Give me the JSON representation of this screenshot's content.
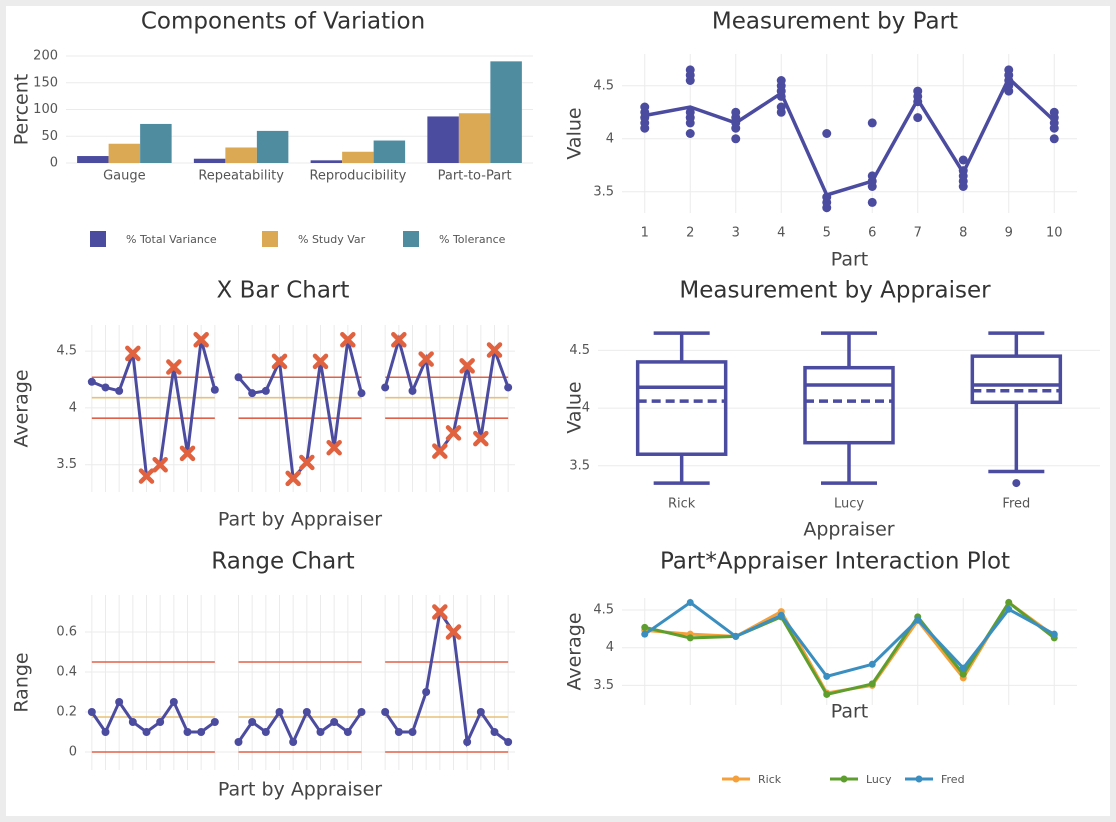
{
  "chart_data": [
    {
      "type": "bar",
      "title": "Components of Variation",
      "y_label": "Percent",
      "categories": [
        "Gauge",
        "Repeatability",
        "Reproducibility",
        "Part-to-Part"
      ],
      "series": [
        {
          "name": "% Total Variance",
          "color": "#4b4ba0",
          "values": [
            13,
            8,
            5,
            87
          ]
        },
        {
          "name": "% Study Var",
          "color": "#dba954",
          "values": [
            36,
            29,
            21,
            93
          ]
        },
        {
          "name": "% Tolerance",
          "color": "#4f8ca0",
          "values": [
            73,
            60,
            42,
            190
          ]
        }
      ],
      "ylim": [
        0,
        200
      ],
      "yticks": [
        0,
        50,
        100,
        150,
        200
      ],
      "grid": true
    },
    {
      "type": "scatter",
      "title": "Measurement by Part",
      "x_label": "Part",
      "y_label": "Value",
      "color": "#4b4ba0",
      "points": {
        "x": [
          1,
          1,
          1,
          1,
          1,
          2,
          2,
          2,
          2,
          2,
          2,
          2,
          3,
          3,
          3,
          3,
          3,
          4,
          4,
          4,
          4,
          4,
          4,
          5,
          5,
          5,
          5,
          6,
          6,
          6,
          6,
          6,
          7,
          7,
          7,
          7,
          8,
          8,
          8,
          8,
          8,
          9,
          9,
          9,
          9,
          9,
          10,
          10,
          10,
          10,
          10
        ],
        "values": [
          4.1,
          4.15,
          4.2,
          4.25,
          4.3,
          4.05,
          4.15,
          4.2,
          4.25,
          4.55,
          4.6,
          4.65,
          4.0,
          4.1,
          4.15,
          4.2,
          4.25,
          4.25,
          4.3,
          4.4,
          4.45,
          4.5,
          4.55,
          3.35,
          3.4,
          3.45,
          4.05,
          3.4,
          3.55,
          3.6,
          3.65,
          4.15,
          4.2,
          4.35,
          4.4,
          4.45,
          3.55,
          3.6,
          3.65,
          3.7,
          3.8,
          4.45,
          4.5,
          4.55,
          4.6,
          4.65,
          4.0,
          4.1,
          4.15,
          4.2,
          4.25
        ]
      },
      "means": {
        "x": [
          1,
          2,
          3,
          4,
          5,
          6,
          7,
          8,
          9,
          10
        ],
        "values": [
          4.22,
          4.3,
          4.15,
          4.43,
          3.47,
          3.6,
          4.37,
          3.68,
          4.57,
          4.17
        ]
      },
      "xlim": [
        0.5,
        10.5
      ],
      "xticks": [
        1,
        2,
        3,
        4,
        5,
        6,
        7,
        8,
        9,
        10
      ],
      "ylim": [
        3.3,
        4.8
      ],
      "yticks": [
        3.5,
        4,
        4.5
      ],
      "grid": true
    },
    {
      "type": "control",
      "title": "X Bar Chart",
      "x_label": "Part by Appraiser",
      "y_label": "Average",
      "color": "#4b4ba0",
      "flag_color": "#e0623f",
      "series": [
        {
          "values": [
            4.23,
            4.18,
            4.15,
            4.48,
            3.4,
            3.5,
            4.36,
            3.6,
            4.6,
            4.16
          ]
        },
        {
          "values": [
            4.27,
            4.13,
            4.15,
            4.41,
            3.38,
            3.52,
            4.41,
            3.65,
            4.6,
            4.13
          ]
        },
        {
          "values": [
            4.18,
            4.6,
            4.15,
            4.43,
            3.62,
            3.78,
            4.37,
            3.73,
            4.51,
            4.18
          ]
        }
      ],
      "ucl": 4.27,
      "center": 4.09,
      "lcl": 3.91,
      "limit_color": "#e0604a",
      "center_color": "#e8c07a",
      "ylim": [
        3.26,
        4.73
      ],
      "yticks": [
        3.5,
        4,
        4.5
      ],
      "grid": true
    },
    {
      "type": "box",
      "title": "Measurement by Appraiser",
      "x_label": "Appraiser",
      "y_label": "Value",
      "color": "#4b4ba0",
      "categories": [
        "Rick",
        "Lucy",
        "Fred"
      ],
      "boxes": [
        {
          "min": 3.35,
          "q1": 3.6,
          "median": 4.18,
          "mean": 4.06,
          "q3": 4.4,
          "max": 4.65,
          "outliers": []
        },
        {
          "min": 3.35,
          "q1": 3.7,
          "median": 4.2,
          "mean": 4.06,
          "q3": 4.35,
          "max": 4.65,
          "outliers": []
        },
        {
          "min": 3.45,
          "q1": 4.05,
          "median": 4.2,
          "mean": 4.15,
          "q3": 4.45,
          "max": 4.65,
          "outliers": [
            3.35
          ]
        }
      ],
      "ylim": [
        3.29,
        4.72
      ],
      "yticks": [
        3.5,
        4,
        4.5
      ],
      "grid": true
    },
    {
      "type": "control",
      "title": "Range Chart",
      "x_label": "Part by Appraiser",
      "y_label": "Range",
      "color": "#4b4ba0",
      "flag_color": "#e0623f",
      "series": [
        {
          "values": [
            0.2,
            0.1,
            0.25,
            0.15,
            0.1,
            0.15,
            0.25,
            0.1,
            0.1,
            0.15
          ]
        },
        {
          "values": [
            0.05,
            0.15,
            0.1,
            0.2,
            0.05,
            0.2,
            0.1,
            0.15,
            0.1,
            0.2
          ]
        },
        {
          "values": [
            0.2,
            0.1,
            0.1,
            0.3,
            0.7,
            0.6,
            0.05,
            0.2,
            0.1,
            0.05
          ]
        }
      ],
      "ucl": 0.45,
      "center": 0.175,
      "lcl": 0,
      "limit_color": "#e0604a",
      "center_color": "#e8c07a",
      "ylim": [
        -0.09,
        0.785
      ],
      "yticks": [
        0,
        0.2,
        0.4,
        0.6
      ],
      "grid": true
    },
    {
      "type": "line",
      "title": "Part*Appraiser Interaction Plot",
      "x_label": "Part",
      "y_label": "Average",
      "categories": [
        null,
        null,
        null,
        null,
        null,
        null,
        null,
        null,
        null,
        null
      ],
      "series": [
        {
          "name": "Rick",
          "color": "#f5a03b",
          "values": [
            4.23,
            4.18,
            4.15,
            4.48,
            3.4,
            3.5,
            4.36,
            3.6,
            4.6,
            4.16
          ]
        },
        {
          "name": "Lucy",
          "color": "#5d9e2e",
          "values": [
            4.27,
            4.13,
            4.15,
            4.41,
            3.38,
            3.52,
            4.41,
            3.65,
            4.6,
            4.13
          ]
        },
        {
          "name": "Fred",
          "color": "#3a8fc0",
          "values": [
            4.18,
            4.6,
            4.15,
            4.43,
            3.62,
            3.78,
            4.37,
            3.73,
            4.51,
            4.18
          ]
        }
      ],
      "ylim": [
        3.24,
        4.66
      ],
      "yticks": [
        3.5,
        4,
        4.5
      ],
      "grid": true
    }
  ]
}
